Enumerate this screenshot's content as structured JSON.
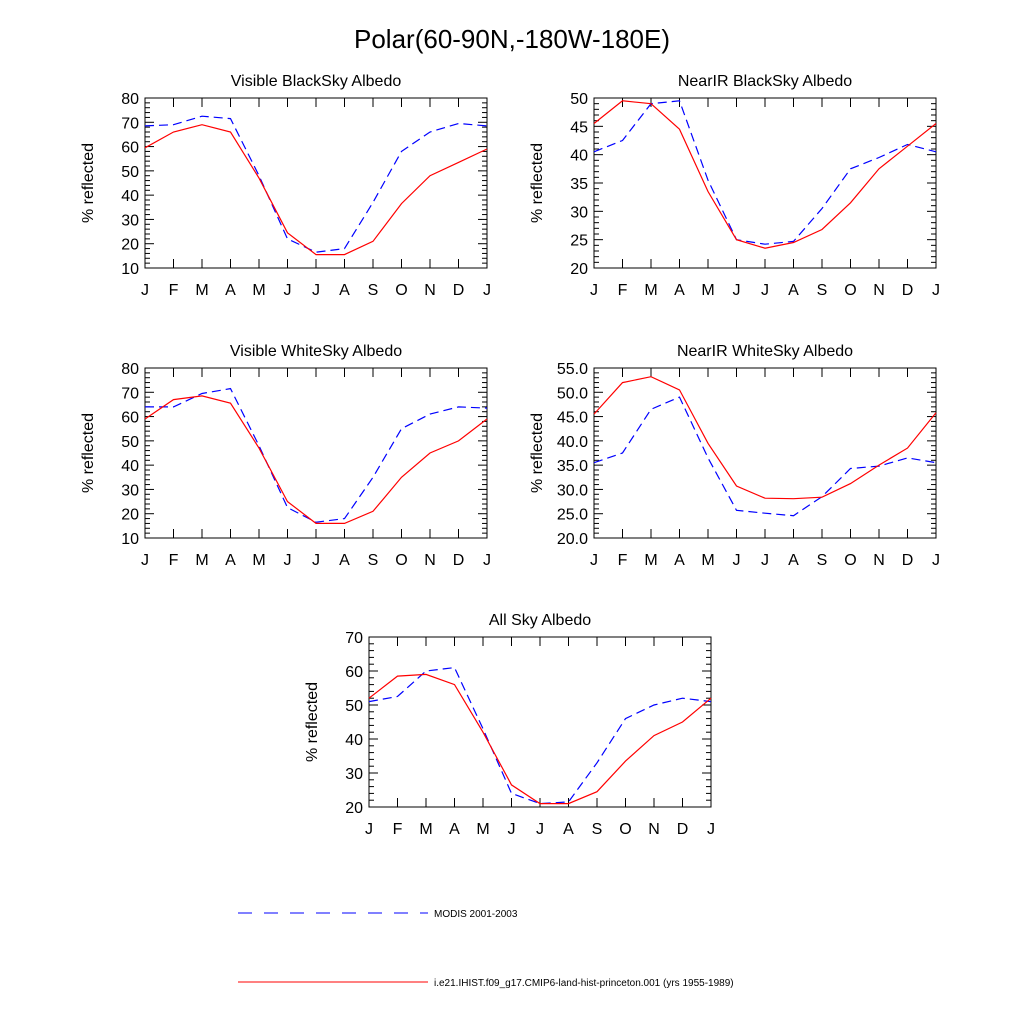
{
  "title": "Polar(60-90N,-180W-180E)",
  "legend": {
    "items": [
      {
        "label": "MODIS 2001-2003",
        "color": "#0000ff",
        "dash": "dashed"
      },
      {
        "label": "i.e21.IHIST.f09_g17.CMIP6-land-hist-princeton.001 (yrs 1955-1989)",
        "color": "#ff0000",
        "dash": "solid"
      }
    ]
  },
  "chart_data": [
    {
      "type": "line",
      "title": "Visible BlackSky Albedo",
      "ylabel": "% reflected",
      "categories": [
        "J",
        "F",
        "M",
        "A",
        "M",
        "J",
        "J",
        "A",
        "S",
        "O",
        "N",
        "D",
        "J"
      ],
      "ylim": [
        10,
        80
      ],
      "yticks": [
        "10",
        "20",
        "30",
        "40",
        "50",
        "60",
        "70",
        "80"
      ],
      "series": [
        {
          "name": "MODIS 2001-2003",
          "color": "#0000ff",
          "dash": "dashed",
          "values": [
            68.5,
            69,
            72.5,
            71.5,
            48,
            22,
            16.5,
            18,
            37,
            58,
            66,
            69.5,
            68.5
          ]
        },
        {
          "name": "i.e21.IHIST.f09_g17.CMIP6-land-hist-princeton.001 (yrs 1955-1989)",
          "color": "#ff0000",
          "dash": "solid",
          "values": [
            59.5,
            66,
            69,
            66,
            47,
            24.5,
            15.5,
            15.5,
            21,
            36.5,
            48,
            53.5,
            59
          ]
        }
      ]
    },
    {
      "type": "line",
      "title": "NearIR BlackSky Albedo",
      "ylabel": "% reflected",
      "categories": [
        "J",
        "F",
        "M",
        "A",
        "M",
        "J",
        "J",
        "A",
        "S",
        "O",
        "N",
        "D",
        "J"
      ],
      "ylim": [
        20,
        50
      ],
      "yticks": [
        "20",
        "25",
        "30",
        "35",
        "40",
        "45",
        "50"
      ],
      "series": [
        {
          "name": "MODIS 2001-2003",
          "color": "#0000ff",
          "dash": "dashed",
          "values": [
            40.5,
            42.5,
            49,
            49.5,
            35.5,
            25,
            24.2,
            24.7,
            30.5,
            37.5,
            39.5,
            41.8,
            40.5
          ]
        },
        {
          "name": "i.e21.IHIST.f09_g17.CMIP6-land-hist-princeton.001 (yrs 1955-1989)",
          "color": "#ff0000",
          "dash": "solid",
          "values": [
            45.5,
            49.5,
            49,
            44.5,
            33.5,
            25,
            23.5,
            24.5,
            26.8,
            31.5,
            37.5,
            41.5,
            45.5
          ]
        }
      ]
    },
    {
      "type": "line",
      "title": "Visible WhiteSky Albedo",
      "ylabel": "% reflected",
      "categories": [
        "J",
        "F",
        "M",
        "A",
        "M",
        "J",
        "J",
        "A",
        "S",
        "O",
        "N",
        "D",
        "J"
      ],
      "ylim": [
        10,
        80
      ],
      "yticks": [
        "10",
        "20",
        "30",
        "40",
        "50",
        "60",
        "70",
        "80"
      ],
      "series": [
        {
          "name": "MODIS 2001-2003",
          "color": "#0000ff",
          "dash": "dashed",
          "values": [
            64,
            64,
            69.5,
            71.5,
            48,
            22.5,
            16.5,
            18,
            35,
            55,
            61,
            64,
            63.5
          ]
        },
        {
          "name": "i.e21.IHIST.f09_g17.CMIP6-land-hist-princeton.001 (yrs 1955-1989)",
          "color": "#ff0000",
          "dash": "solid",
          "values": [
            59,
            67,
            68.5,
            65.5,
            47,
            25,
            16,
            16,
            21,
            35,
            45,
            50,
            59
          ]
        }
      ]
    },
    {
      "type": "line",
      "title": "NearIR WhiteSky Albedo",
      "ylabel": "% reflected",
      "categories": [
        "J",
        "F",
        "M",
        "A",
        "M",
        "J",
        "J",
        "A",
        "S",
        "O",
        "N",
        "D",
        "J"
      ],
      "ylim": [
        20,
        55
      ],
      "yticks": [
        "20.0",
        "25.0",
        "30.0",
        "35.0",
        "40.0",
        "45.0",
        "50.0",
        "55.0"
      ],
      "series": [
        {
          "name": "MODIS 2001-2003",
          "color": "#0000ff",
          "dash": "dashed",
          "values": [
            35.5,
            37.5,
            46.5,
            49,
            36.5,
            25.7,
            25.1,
            24.6,
            28.5,
            34.3,
            34.8,
            36.5,
            35.5
          ]
        },
        {
          "name": "i.e21.IHIST.f09_g17.CMIP6-land-hist-princeton.001 (yrs 1955-1989)",
          "color": "#ff0000",
          "dash": "solid",
          "values": [
            45.5,
            52,
            53.2,
            50.5,
            39.5,
            30.7,
            28.2,
            28.1,
            28.4,
            31.2,
            35,
            38.5,
            45.8
          ]
        }
      ]
    },
    {
      "type": "line",
      "title": "All Sky Albedo",
      "ylabel": "% reflected",
      "categories": [
        "J",
        "F",
        "M",
        "A",
        "M",
        "J",
        "J",
        "A",
        "S",
        "O",
        "N",
        "D",
        "J"
      ],
      "ylim": [
        20,
        70
      ],
      "yticks": [
        "20",
        "30",
        "40",
        "50",
        "60",
        "70"
      ],
      "series": [
        {
          "name": "MODIS 2001-2003",
          "color": "#0000ff",
          "dash": "dashed",
          "values": [
            51,
            52.5,
            60,
            61,
            43,
            24,
            21,
            21.5,
            33,
            46,
            50,
            52,
            51
          ]
        },
        {
          "name": "i.e21.IHIST.f09_g17.CMIP6-land-hist-princeton.001 (yrs 1955-1989)",
          "color": "#ff0000",
          "dash": "solid",
          "values": [
            52,
            58.5,
            59,
            56,
            42,
            26.5,
            21,
            21,
            24.5,
            33.5,
            41,
            45,
            52
          ]
        }
      ]
    }
  ]
}
